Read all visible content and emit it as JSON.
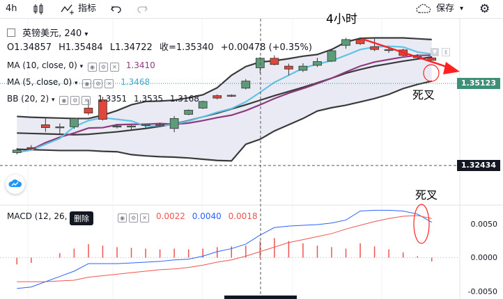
{
  "toolbar": {
    "interval": "4h",
    "indicators_label": "指标",
    "save_label": "保存"
  },
  "legend": {
    "symbol": "英镑美元",
    "timeframe": "240",
    "open": "O1.34857",
    "high": "H1.35484",
    "low": "L1.34722",
    "close": "收=1.35340",
    "change": "+0.00478 (+0.35%)",
    "ma10_label": "MA (10, close, 0)",
    "ma10_value": "1.3410",
    "ma5_label": "MA (5, close, 0)",
    "ma5_value": "1.3468",
    "bb_label": "BB (20, 2)",
    "bb_values": [
      "1.3351",
      "1.3535",
      "1.3168"
    ],
    "macd_label": "MACD (12, 26,",
    "macd_values": [
      "0.0022",
      "0.0040",
      "0.0018"
    ]
  },
  "price_tags": {
    "current": "1.35123",
    "crosshair": "1.32434"
  },
  "macd_axis": [
    "0.0050",
    "0.0000",
    "-0.0050"
  ],
  "annotations": {
    "title": "4小时",
    "death_cross_1": "死叉",
    "death_cross_2": "死叉"
  },
  "tooltip": "删除",
  "colors": {
    "up": "#26a69a",
    "down": "#ef5350",
    "ma10": "#8e3b7c",
    "ma5": "#5fc3e4",
    "bb": "#3a3a3a",
    "bb_fill": "#e8e8f4",
    "arrow": "#ff2020",
    "current_tag": "#3f8f77",
    "crosshair_tag": "#131722"
  },
  "chart_data": {
    "type": "candlestick",
    "candles": [
      {
        "o": 1.3238,
        "h": 1.3249,
        "l": 1.3234,
        "c": 1.3244
      },
      {
        "o": 1.325,
        "h": 1.3256,
        "l": 1.3245,
        "c": 1.3247
      },
      {
        "o": 1.3305,
        "h": 1.332,
        "l": 1.3288,
        "c": 1.3298
      },
      {
        "o": 1.3298,
        "h": 1.3308,
        "l": 1.3282,
        "c": 1.33
      },
      {
        "o": 1.33,
        "h": 1.3322,
        "l": 1.3295,
        "c": 1.332
      },
      {
        "o": 1.3345,
        "h": 1.3366,
        "l": 1.3328,
        "c": 1.3333
      },
      {
        "o": 1.3365,
        "h": 1.3372,
        "l": 1.3315,
        "c": 1.3318
      },
      {
        "o": 1.33,
        "h": 1.3306,
        "l": 1.3296,
        "c": 1.3302
      },
      {
        "o": 1.33,
        "h": 1.3304,
        "l": 1.3294,
        "c": 1.3302
      },
      {
        "o": 1.3303,
        "h": 1.3308,
        "l": 1.3298,
        "c": 1.3306
      },
      {
        "o": 1.3305,
        "h": 1.331,
        "l": 1.33,
        "c": 1.3302
      },
      {
        "o": 1.3296,
        "h": 1.3326,
        "l": 1.3287,
        "c": 1.332
      },
      {
        "o": 1.333,
        "h": 1.3342,
        "l": 1.3328,
        "c": 1.334
      },
      {
        "o": 1.3345,
        "h": 1.3363,
        "l": 1.3343,
        "c": 1.3361
      },
      {
        "o": 1.3375,
        "h": 1.3378,
        "l": 1.3366,
        "c": 1.3369
      },
      {
        "o": 1.3376,
        "h": 1.3378,
        "l": 1.3372,
        "c": 1.3374
      },
      {
        "o": 1.3393,
        "h": 1.3415,
        "l": 1.339,
        "c": 1.341
      },
      {
        "o": 1.3442,
        "h": 1.3468,
        "l": 1.3429,
        "c": 1.3465
      },
      {
        "o": 1.3465,
        "h": 1.3472,
        "l": 1.3448,
        "c": 1.345
      },
      {
        "o": 1.3446,
        "h": 1.3452,
        "l": 1.3424,
        "c": 1.3439
      },
      {
        "o": 1.3436,
        "h": 1.3453,
        "l": 1.3432,
        "c": 1.3446
      },
      {
        "o": 1.3448,
        "h": 1.3466,
        "l": 1.3444,
        "c": 1.3457
      },
      {
        "o": 1.3458,
        "h": 1.3488,
        "l": 1.3456,
        "c": 1.3483
      },
      {
        "o": 1.3496,
        "h": 1.3514,
        "l": 1.3488,
        "c": 1.351
      },
      {
        "o": 1.351,
        "h": 1.3511,
        "l": 1.3497,
        "c": 1.35
      },
      {
        "o": 1.3493,
        "h": 1.3512,
        "l": 1.3482,
        "c": 1.3486
      },
      {
        "o": 1.3486,
        "h": 1.3492,
        "l": 1.3478,
        "c": 1.3486
      },
      {
        "o": 1.3485,
        "h": 1.3488,
        "l": 1.347,
        "c": 1.3472
      },
      {
        "o": 1.3469,
        "h": 1.3475,
        "l": 1.3464,
        "c": 1.3467
      },
      {
        "o": 1.3466,
        "h": 1.3472,
        "l": 1.346,
        "c": 1.346
      }
    ],
    "ma10": [
      1.3238,
      1.3245,
      1.3262,
      1.3275,
      1.3285,
      1.3297,
      1.3298,
      1.3305,
      1.3306,
      1.3306,
      1.3308,
      1.3306,
      1.3309,
      1.3315,
      1.3322,
      1.3328,
      1.3339,
      1.3353,
      1.3368,
      1.3381,
      1.3392,
      1.3404,
      1.3417,
      1.3432,
      1.3446,
      1.3456,
      1.3462,
      1.3468,
      1.3472,
      1.3472
    ],
    "ma5": [
      1.3238,
      1.3244,
      1.3258,
      1.3272,
      1.33,
      1.3315,
      1.3322,
      1.3318,
      1.3314,
      1.3302,
      1.3302,
      1.3306,
      1.3314,
      1.3324,
      1.3335,
      1.3344,
      1.336,
      1.3383,
      1.3407,
      1.3424,
      1.3441,
      1.3451,
      1.3459,
      1.3472,
      1.3486,
      1.3492,
      1.3494,
      1.3492,
      1.348,
      1.3475
    ],
    "bb_upper": [
      1.3325,
      1.3323,
      1.3322,
      1.3321,
      1.332,
      1.332,
      1.3328,
      1.3339,
      1.3353,
      1.3361,
      1.3362,
      1.3364,
      1.337,
      1.3377,
      1.3394,
      1.3424,
      1.3445,
      1.3456,
      1.3459,
      1.3464,
      1.347,
      1.3474,
      1.3486,
      1.3504,
      1.3513,
      1.3514,
      1.3514,
      1.3514,
      1.3512,
      1.351
    ],
    "bb_middle": [
      1.3285,
      1.3284,
      1.3283,
      1.3282,
      1.3281,
      1.3282,
      1.3285,
      1.3288,
      1.3292,
      1.3296,
      1.3301,
      1.3307,
      1.3315,
      1.3324,
      1.3333,
      1.3343,
      1.3353,
      1.3364,
      1.3375,
      1.3385,
      1.3395,
      1.3406,
      1.3417,
      1.3429,
      1.3438,
      1.3446,
      1.3452,
      1.3458,
      1.3463,
      1.3468
    ],
    "bb_lower": [
      1.3246,
      1.3245,
      1.3244,
      1.3243,
      1.3243,
      1.3243,
      1.3241,
      1.324,
      1.3233,
      1.323,
      1.3228,
      1.3227,
      1.3225,
      1.3222,
      1.3219,
      1.3218,
      1.3258,
      1.327,
      1.329,
      1.3305,
      1.332,
      1.3338,
      1.3346,
      1.3352,
      1.336,
      1.3368,
      1.3378,
      1.3392,
      1.3402,
      1.341
    ],
    "macd": [
      -0.0041,
      -0.0039,
      -0.0032,
      -0.0025,
      -0.0018,
      -0.0008,
      -0.0008,
      -0.0008,
      -0.0007,
      -0.0006,
      -0.0005,
      -0.0003,
      -0.0002,
      0.0002,
      0.0008,
      0.0012,
      0.0018,
      0.003,
      0.004,
      0.0042,
      0.0043,
      0.0044,
      0.0046,
      0.005,
      0.0062,
      0.0063,
      0.0063,
      0.0062,
      0.0058,
      0.0047
    ],
    "signal": [
      -0.0032,
      -0.0032,
      -0.0032,
      -0.0031,
      -0.003,
      -0.0026,
      -0.0024,
      -0.0022,
      -0.002,
      -0.0018,
      -0.0016,
      -0.0015,
      -0.0013,
      -0.001,
      -0.0006,
      -0.0003,
      0.0002,
      0.0008,
      0.0014,
      0.002,
      0.0024,
      0.0028,
      0.0032,
      0.0038,
      0.0043,
      0.0048,
      0.0052,
      0.0055,
      0.0056,
      0.0052
    ],
    "histogram": [
      -0.0009,
      -0.0007,
      0.0,
      0.0006,
      0.0012,
      0.0018,
      0.0016,
      0.0014,
      0.0013,
      0.0012,
      0.0011,
      0.0012,
      0.0011,
      0.0012,
      0.0014,
      0.0015,
      0.0016,
      0.0022,
      0.0026,
      0.0022,
      0.0019,
      0.0016,
      0.0014,
      0.0012,
      0.0019,
      0.0015,
      0.0011,
      0.0007,
      0.0002,
      -0.0005
    ],
    "price_range": [
      1.315,
      1.356
    ],
    "macd_range": [
      -0.0055,
      0.0068
    ]
  }
}
